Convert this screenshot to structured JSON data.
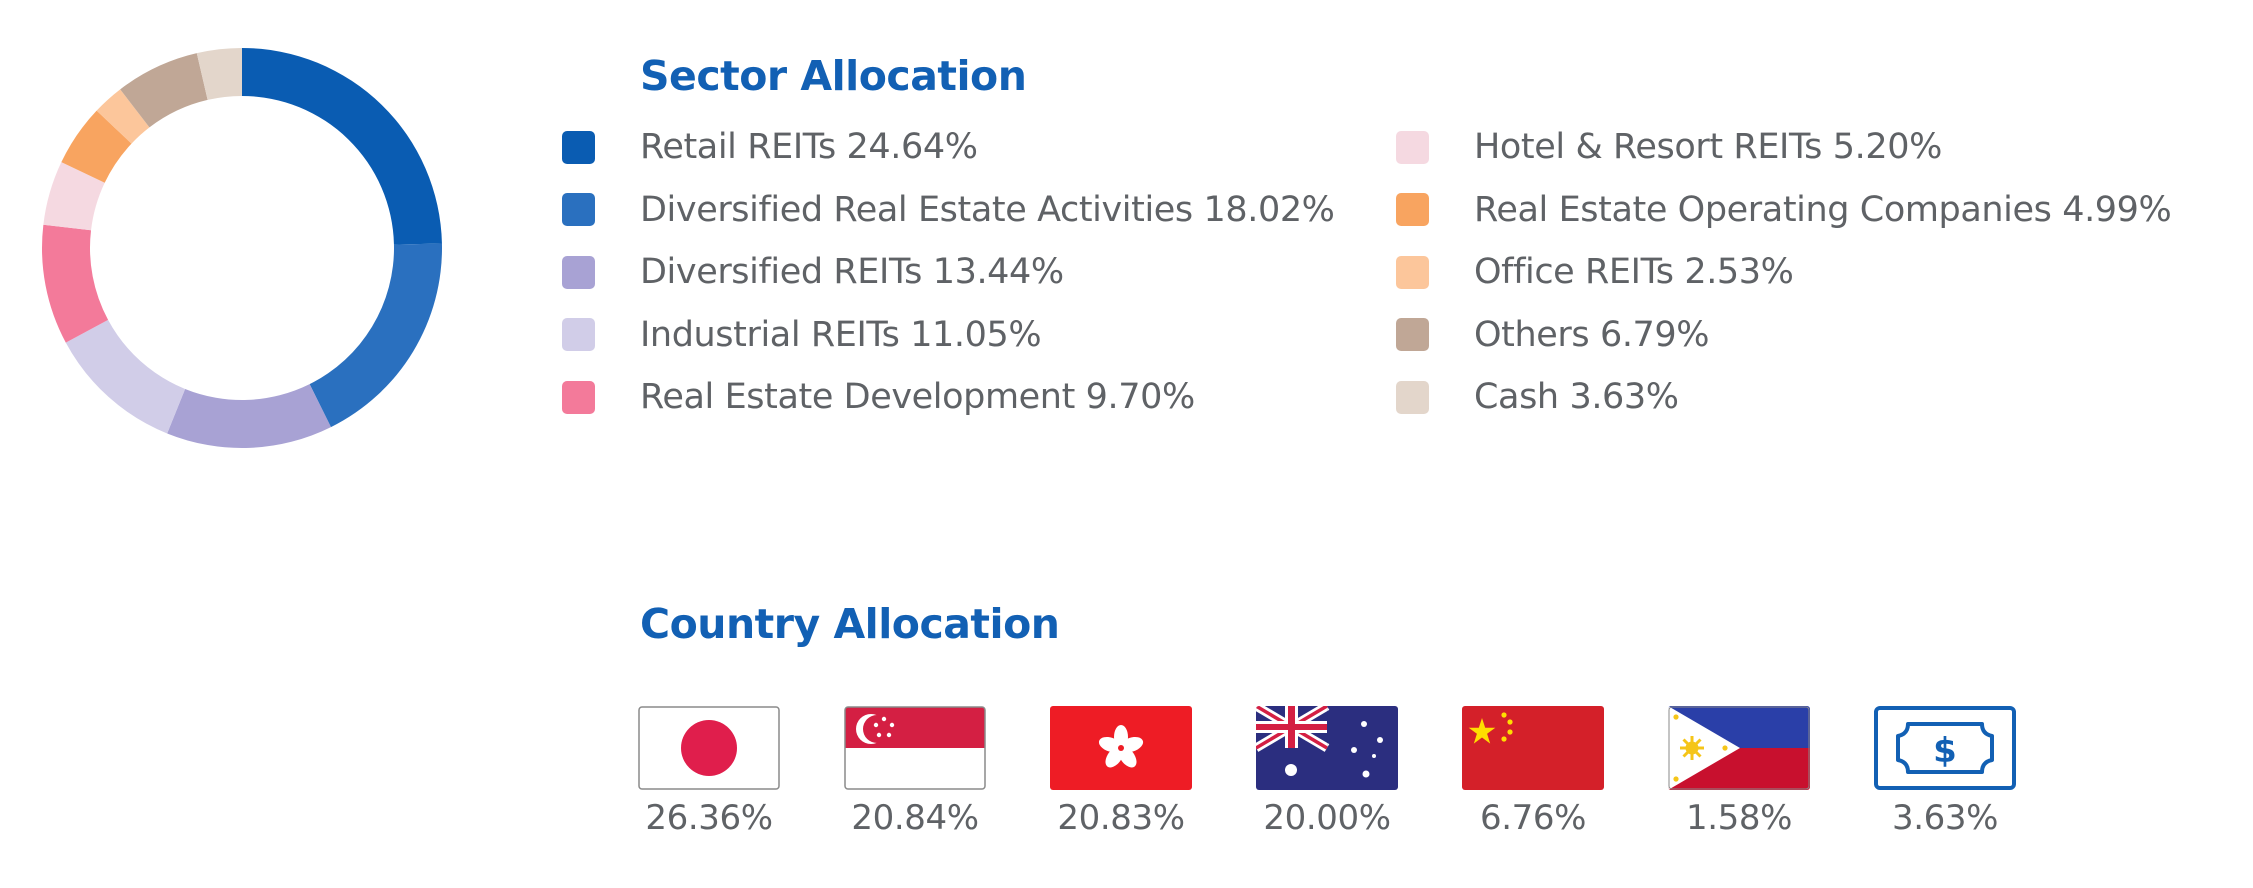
{
  "sector_title": "Sector Allocation",
  "country_title": "Country Allocation",
  "chart_data": [
    {
      "type": "pie",
      "variant": "donut",
      "title": "Sector Allocation",
      "legend_position": "right",
      "slices": [
        {
          "label": "Retail REITs",
          "value": 24.64,
          "display": "24.64%",
          "color": "#0a5cb2"
        },
        {
          "label": "Diversified Real Estate Activities",
          "value": 18.02,
          "display": "18.02%",
          "color": "#2a70bf"
        },
        {
          "label": "Diversified REITs",
          "value": 13.44,
          "display": "13.44%",
          "color": "#a8a2d4"
        },
        {
          "label": "Industrial REITs",
          "value": 11.05,
          "display": "11.05%",
          "color": "#d1cde8"
        },
        {
          "label": "Real Estate Development",
          "value": 9.7,
          "display": "9.70%",
          "color": "#f37a9a"
        },
        {
          "label": "Hotel & Resort REITs",
          "value": 5.2,
          "display": "5.20%",
          "color": "#f5d9e1"
        },
        {
          "label": "Real Estate Operating Companies",
          "value": 4.99,
          "display": "4.99%",
          "color": "#f8a460"
        },
        {
          "label": "Office REITs",
          "value": 2.53,
          "display": "2.53%",
          "color": "#fcc69b"
        },
        {
          "label": "Others",
          "value": 6.79,
          "display": "6.79%",
          "color": "#c0a796"
        },
        {
          "label": "Cash",
          "value": 3.63,
          "display": "3.63%",
          "color": "#e3d6cb"
        }
      ]
    },
    {
      "type": "table",
      "title": "Country Allocation",
      "entries": [
        {
          "flag_icon": "japan-flag-icon",
          "value": 26.36,
          "display": "26.36%"
        },
        {
          "flag_icon": "singapore-flag-icon",
          "value": 20.84,
          "display": "20.84%"
        },
        {
          "flag_icon": "hong-kong-flag-icon",
          "value": 20.83,
          "display": "20.83%"
        },
        {
          "flag_icon": "australia-flag-icon",
          "value": 20.0,
          "display": "20.00%"
        },
        {
          "flag_icon": "china-flag-icon",
          "value": 6.76,
          "display": "6.76%"
        },
        {
          "flag_icon": "philippines-flag-icon",
          "value": 1.58,
          "display": "1.58%"
        },
        {
          "flag_icon": "cash-icon",
          "value": 3.63,
          "display": "3.63%"
        }
      ]
    }
  ]
}
